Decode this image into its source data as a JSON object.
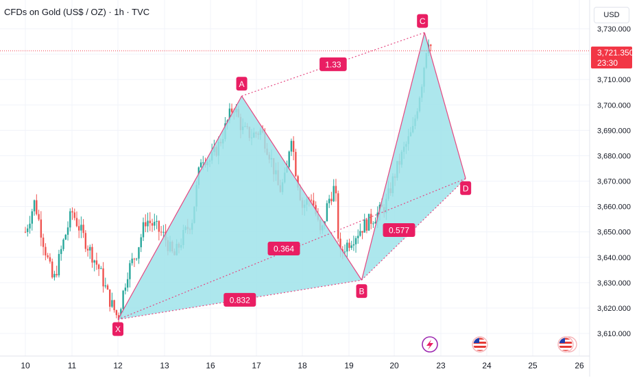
{
  "header": {
    "title": "CFDs on Gold (US$ / OZ) · 1h · TVC",
    "currency": "USD"
  },
  "last_price": {
    "value": "3,721.350",
    "countdown": "23:30"
  },
  "colors": {
    "up": "#26a69a",
    "down": "#ef5350",
    "pattern_fill": "#9fe3ea",
    "pattern_line": "#e5457f",
    "label_bg": "#e91e63",
    "price_line": "#f23645",
    "grid": "#f0f3fa",
    "axis_text": "#131722"
  },
  "chart_data": {
    "type": "candlestick",
    "title": "CFDs on Gold (US$ / OZ) · 1h · TVC",
    "x_ticks": [
      "10",
      "11",
      "12",
      "13",
      "16",
      "17",
      "18",
      "19",
      "20",
      "23",
      "24",
      "25",
      "26"
    ],
    "y_ticks": [
      "3,610.000",
      "3,620.000",
      "3,630.000",
      "3,640.000",
      "3,650.000",
      "3,660.000",
      "3,670.000",
      "3,680.000",
      "3,690.000",
      "3,700.000",
      "3,710.000",
      "3,720.000",
      "3,730.000"
    ],
    "ylim": [
      3606,
      3734
    ],
    "grid": true,
    "last_price": 3721.35,
    "price_path": [
      [
        0.0,
        3650
      ],
      [
        0.2,
        3662
      ],
      [
        0.4,
        3645
      ],
      [
        0.6,
        3630
      ],
      [
        0.8,
        3645
      ],
      [
        1.0,
        3658
      ],
      [
        1.3,
        3646
      ],
      [
        1.6,
        3635
      ],
      [
        1.8,
        3624
      ],
      [
        2.0,
        3616
      ],
      [
        2.2,
        3634
      ],
      [
        2.4,
        3642
      ],
      [
        2.6,
        3655
      ],
      [
        2.8,
        3652
      ],
      [
        3.0,
        3648
      ],
      [
        3.2,
        3640
      ],
      [
        3.4,
        3648
      ],
      [
        3.6,
        3655
      ],
      [
        3.8,
        3680
      ],
      [
        4.0,
        3678
      ],
      [
        4.2,
        3685
      ],
      [
        4.5,
        3700
      ],
      [
        4.7,
        3690
      ],
      [
        4.9,
        3688
      ],
      [
        5.1,
        3690
      ],
      [
        5.3,
        3680
      ],
      [
        5.5,
        3666
      ],
      [
        5.65,
        3672
      ],
      [
        5.75,
        3690
      ],
      [
        5.85,
        3675
      ],
      [
        6.0,
        3660
      ],
      [
        6.2,
        3664
      ],
      [
        6.4,
        3648
      ],
      [
        6.55,
        3662
      ],
      [
        6.7,
        3668
      ],
      [
        6.8,
        3640
      ],
      [
        6.9,
        3644
      ],
      [
        7.1,
        3648
      ],
      [
        7.3,
        3652
      ],
      [
        7.5,
        3655
      ],
      [
        7.8,
        3660
      ],
      [
        8.0,
        3672
      ],
      [
        8.2,
        3682
      ],
      [
        8.4,
        3690
      ],
      [
        8.6,
        3710
      ],
      [
        8.7,
        3724
      ],
      [
        8.75,
        3727
      ],
      [
        8.8,
        3721.35
      ]
    ],
    "annotations": {
      "type": "harmonic-pattern",
      "points": [
        {
          "label": "X",
          "x": 2.0,
          "y": 3615.5
        },
        {
          "label": "A",
          "x": 4.68,
          "y": 3703.5
        },
        {
          "label": "B",
          "x": 7.28,
          "y": 3631.0
        },
        {
          "label": "C",
          "x": 8.65,
          "y": 3728.5
        },
        {
          "label": "D",
          "x": 9.54,
          "y": 3671.0
        }
      ],
      "ratios": [
        {
          "label": "0.832",
          "between": [
            "X",
            "B"
          ]
        },
        {
          "label": "1.33",
          "between": [
            "A",
            "C"
          ]
        },
        {
          "label": "0.364",
          "between": [
            "X",
            "D"
          ]
        },
        {
          "label": "0.577",
          "between": [
            "B",
            "D"
          ]
        }
      ]
    }
  }
}
